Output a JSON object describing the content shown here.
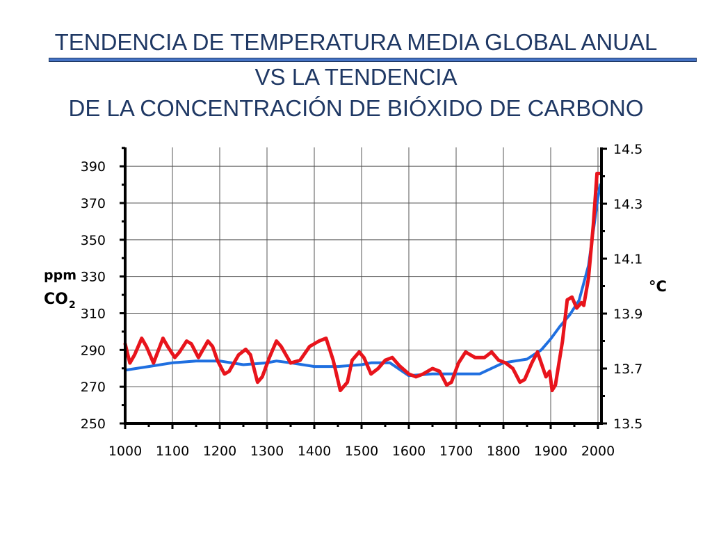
{
  "title": {
    "line1": "TENDENCIA DE TEMPERATURA MEDIA GLOBAL ANUAL",
    "line2": "VS LA TENDENCIA",
    "line3": "DE LA CONCENTRACIÓN DE BIÓXIDO DE CARBONO"
  },
  "colors": {
    "title": "#1f3864",
    "co2_line": "#1f6fe0",
    "temp_line": "#e8141c",
    "grid": "#555555",
    "bar": "#4472c4"
  },
  "chart_data": {
    "type": "line",
    "x_ticks": [
      1000,
      1100,
      1200,
      1300,
      1400,
      1500,
      1600,
      1700,
      1800,
      1900,
      2000
    ],
    "xlim": [
      1000,
      2010
    ],
    "y_left": {
      "label_top": "ppm",
      "label_bottom": "CO",
      "label_sub": "2",
      "ticks": [
        250,
        270,
        290,
        310,
        330,
        350,
        370,
        390
      ],
      "lim": [
        250,
        400
      ]
    },
    "y_right": {
      "label": "°C",
      "ticks": [
        "13.5",
        "13.7",
        "13.9",
        "14.1",
        "14.3",
        "14.5"
      ],
      "lim": [
        13.5,
        14.5
      ]
    },
    "grid": true,
    "series": [
      {
        "axis": "left",
        "color": "#1f6fe0",
        "points": [
          [
            1000,
            279
          ],
          [
            1050,
            281
          ],
          [
            1100,
            283
          ],
          [
            1150,
            284
          ],
          [
            1200,
            284
          ],
          [
            1250,
            282
          ],
          [
            1300,
            283
          ],
          [
            1320,
            284
          ],
          [
            1350,
            283
          ],
          [
            1400,
            281
          ],
          [
            1450,
            281
          ],
          [
            1500,
            282
          ],
          [
            1520,
            283
          ],
          [
            1560,
            283
          ],
          [
            1600,
            276
          ],
          [
            1650,
            277
          ],
          [
            1700,
            277
          ],
          [
            1750,
            277
          ],
          [
            1800,
            283
          ],
          [
            1850,
            285
          ],
          [
            1880,
            290
          ],
          [
            1900,
            296
          ],
          [
            1920,
            303
          ],
          [
            1940,
            309
          ],
          [
            1960,
            317
          ],
          [
            1980,
            336
          ],
          [
            2000,
            373
          ],
          [
            2005,
            380
          ]
        ]
      },
      {
        "axis": "right",
        "color": "#e8141c",
        "points": [
          [
            1000,
            13.79
          ],
          [
            1010,
            13.72
          ],
          [
            1020,
            13.75
          ],
          [
            1035,
            13.81
          ],
          [
            1045,
            13.78
          ],
          [
            1060,
            13.72
          ],
          [
            1080,
            13.81
          ],
          [
            1090,
            13.78
          ],
          [
            1105,
            13.74
          ],
          [
            1115,
            13.76
          ],
          [
            1130,
            13.8
          ],
          [
            1140,
            13.79
          ],
          [
            1155,
            13.74
          ],
          [
            1175,
            13.8
          ],
          [
            1185,
            13.78
          ],
          [
            1195,
            13.73
          ],
          [
            1210,
            13.68
          ],
          [
            1220,
            13.69
          ],
          [
            1240,
            13.75
          ],
          [
            1255,
            13.77
          ],
          [
            1265,
            13.75
          ],
          [
            1280,
            13.65
          ],
          [
            1290,
            13.67
          ],
          [
            1305,
            13.74
          ],
          [
            1320,
            13.8
          ],
          [
            1330,
            13.78
          ],
          [
            1350,
            13.72
          ],
          [
            1370,
            13.73
          ],
          [
            1390,
            13.78
          ],
          [
            1410,
            13.8
          ],
          [
            1425,
            13.81
          ],
          [
            1440,
            13.73
          ],
          [
            1455,
            13.62
          ],
          [
            1470,
            13.65
          ],
          [
            1480,
            13.73
          ],
          [
            1495,
            13.76
          ],
          [
            1505,
            13.74
          ],
          [
            1520,
            13.68
          ],
          [
            1535,
            13.7
          ],
          [
            1550,
            13.73
          ],
          [
            1565,
            13.74
          ],
          [
            1580,
            13.71
          ],
          [
            1600,
            13.68
          ],
          [
            1615,
            13.67
          ],
          [
            1630,
            13.68
          ],
          [
            1650,
            13.7
          ],
          [
            1665,
            13.69
          ],
          [
            1680,
            13.64
          ],
          [
            1690,
            13.65
          ],
          [
            1705,
            13.72
          ],
          [
            1720,
            13.76
          ],
          [
            1740,
            13.74
          ],
          [
            1760,
            13.74
          ],
          [
            1775,
            13.76
          ],
          [
            1790,
            13.73
          ],
          [
            1805,
            13.72
          ],
          [
            1820,
            13.7
          ],
          [
            1835,
            13.65
          ],
          [
            1845,
            13.66
          ],
          [
            1860,
            13.72
          ],
          [
            1872,
            13.76
          ],
          [
            1890,
            13.67
          ],
          [
            1898,
            13.69
          ],
          [
            1903,
            13.62
          ],
          [
            1910,
            13.64
          ],
          [
            1925,
            13.8
          ],
          [
            1935,
            13.95
          ],
          [
            1945,
            13.96
          ],
          [
            1955,
            13.92
          ],
          [
            1965,
            13.94
          ],
          [
            1970,
            13.93
          ],
          [
            1980,
            14.03
          ],
          [
            1990,
            14.22
          ],
          [
            1998,
            14.41
          ],
          [
            2005,
            14.41
          ]
        ]
      }
    ]
  }
}
